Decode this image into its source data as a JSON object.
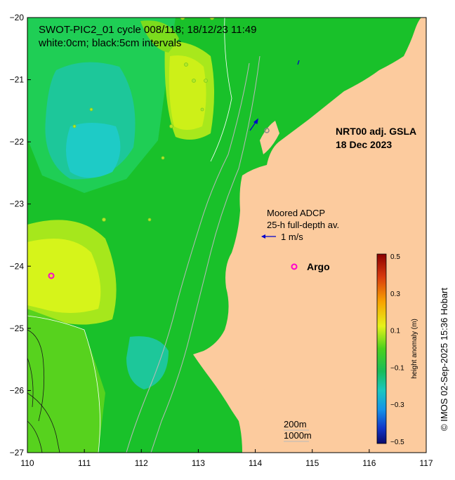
{
  "title": {
    "line1": "SWOT-PIC2_01 cycle 008/118; 18/12/23 11:49",
    "line2": "white:0cm; black:5cm intervals"
  },
  "product": {
    "line1": "NRT00 adj. GSLA",
    "line2": "18 Dec 2023"
  },
  "adcp": {
    "line1": "Moored ADCP",
    "line2": "25-h full-depth av.",
    "scale_label": "1 m/s"
  },
  "argo": {
    "symbol": "o",
    "label": "Argo"
  },
  "isobaths": {
    "label1": "200m",
    "label2": "1000m"
  },
  "colorbar": {
    "label": "height anomaly (m)",
    "ticks": [
      "0.5",
      "0.3",
      "0.1",
      "−0.1",
      "−0.3",
      "−0.5"
    ]
  },
  "credit": "© IMOS 02-Sep-2025 15:36 Hobart",
  "axes": {
    "x_ticks": [
      "110",
      "111",
      "112",
      "113",
      "114",
      "115",
      "116",
      "117"
    ],
    "y_ticks": [
      "−20",
      "−21",
      "−22",
      "−23",
      "−24",
      "−25",
      "−26",
      "−27"
    ]
  },
  "colors": {
    "land": "#fccb9e",
    "ocean_base": "#19c12a",
    "high": "#d4f21a",
    "low": "#19c7b2",
    "argo": "#ff00cc",
    "adcp": "#0000cc"
  }
}
